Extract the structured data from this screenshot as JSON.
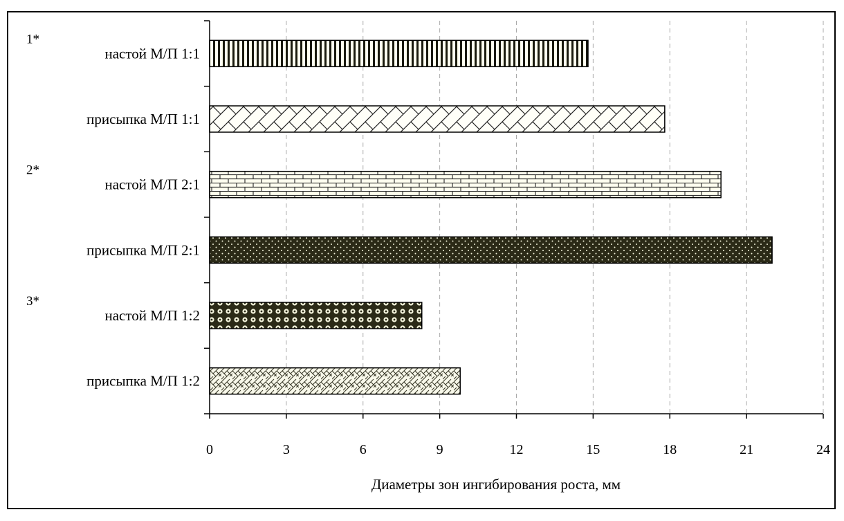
{
  "chart_data": {
    "type": "bar",
    "orientation": "horizontal",
    "categories": [
      "настой М/П 1:1",
      "присыпка М/П 1:1",
      "настой М/П  2:1",
      "присыпка М/П 2:1",
      "настой М/П 1:2",
      "присыпка М/П 1:2"
    ],
    "annotations": [
      "1*",
      "",
      "2*",
      "",
      "3*",
      ""
    ],
    "values": [
      14.8,
      17.8,
      20.0,
      22.0,
      8.3,
      9.8
    ],
    "xlabel": "Диаметры зон ингибирования роста, мм",
    "xlim": [
      0,
      24
    ],
    "xticks": [
      "0",
      "3",
      "6",
      "9",
      "12",
      "15",
      "18",
      "21",
      "24"
    ],
    "grid": "vertical-dashed",
    "legend": "none",
    "patterns": [
      "vertical-lines",
      "diagonal-lattice",
      "brick",
      "dark-dots",
      "dark-circles",
      "herringbone"
    ],
    "colors": {
      "ink": "#000000",
      "fill_light": "#fffff0",
      "fill_dark": "#2b2a17",
      "grid": "#aaaaaa"
    }
  }
}
